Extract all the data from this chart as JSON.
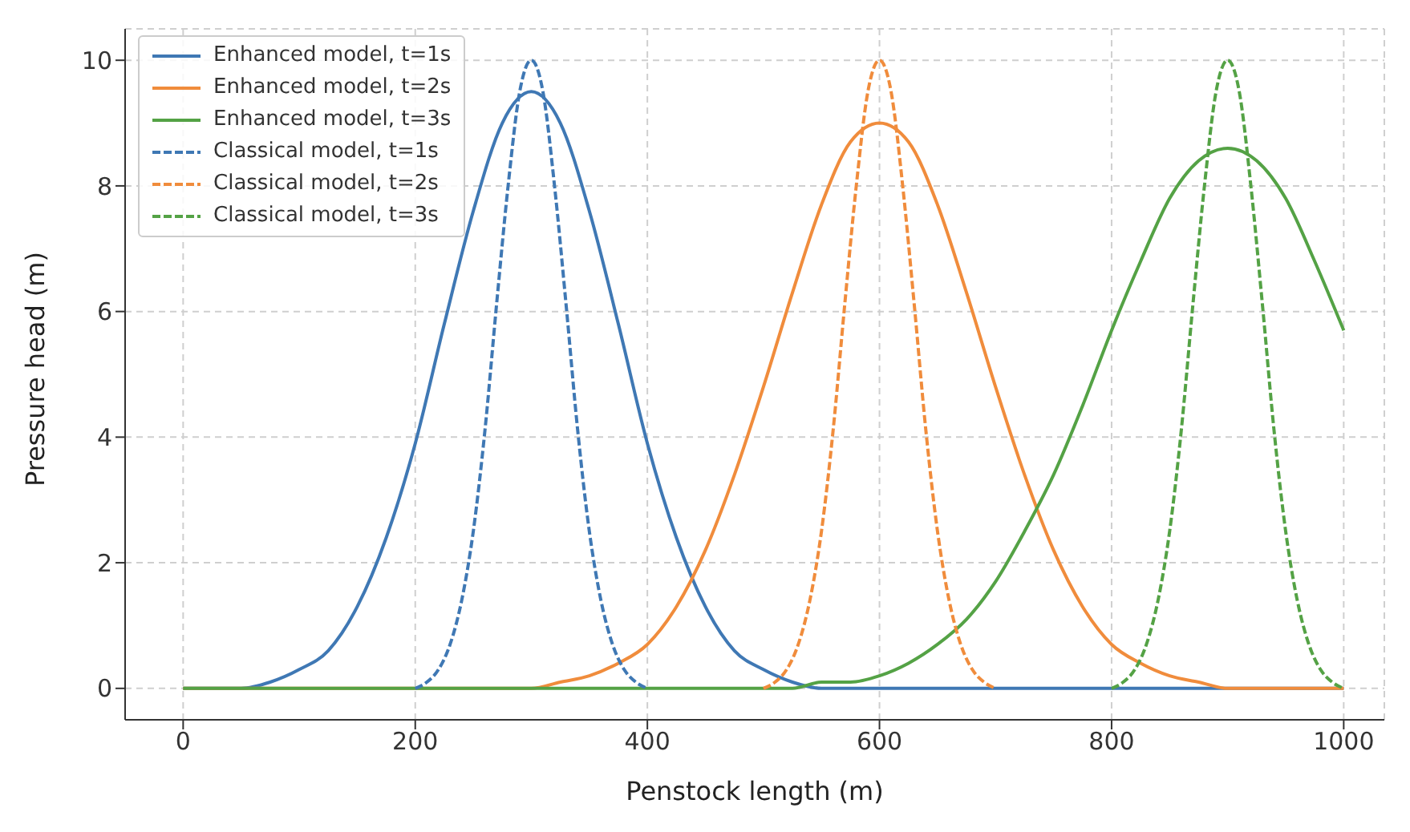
{
  "chart_data": {
    "type": "line",
    "xlabel": "Penstock length (m)",
    "ylabel": "Pressure head (m)",
    "xlim": [
      -50,
      1035
    ],
    "ylim": [
      -0.5,
      10.5
    ],
    "xticks": [
      0,
      200,
      400,
      600,
      800,
      1000
    ],
    "yticks": [
      0,
      2,
      4,
      6,
      8,
      10
    ],
    "grid": true,
    "legend": "top left",
    "marker": "none",
    "series": [
      {
        "name": "Enhanced model, t=1s",
        "color": "#3f78b4",
        "line_style": "solid",
        "x": [
          0,
          50,
          75,
          100,
          125,
          150,
          175,
          200,
          225,
          250,
          275,
          300,
          325,
          350,
          375,
          400,
          425,
          450,
          475,
          500,
          525,
          550,
          1000
        ],
        "values": [
          0,
          0,
          0.1,
          0.3,
          0.6,
          1.3,
          2.4,
          3.9,
          5.8,
          7.6,
          9.0,
          9.5,
          9.0,
          7.6,
          5.8,
          3.9,
          2.4,
          1.3,
          0.6,
          0.3,
          0.1,
          0,
          0
        ]
      },
      {
        "name": "Enhanced model, t=2s",
        "color": "#f08c3c",
        "line_style": "solid",
        "x": [
          0,
          300,
          325,
          350,
          375,
          400,
          425,
          450,
          475,
          500,
          525,
          550,
          575,
          600,
          625,
          650,
          675,
          700,
          725,
          750,
          775,
          800,
          825,
          850,
          875,
          900,
          1000
        ],
        "values": [
          0,
          0,
          0.1,
          0.2,
          0.4,
          0.7,
          1.3,
          2.2,
          3.4,
          4.8,
          6.3,
          7.7,
          8.7,
          9.0,
          8.7,
          7.7,
          6.3,
          4.8,
          3.4,
          2.2,
          1.3,
          0.7,
          0.4,
          0.2,
          0.1,
          0,
          0
        ]
      },
      {
        "name": "Enhanced model, t=3s",
        "color": "#54a245",
        "line_style": "solid",
        "x": [
          0,
          525,
          550,
          575,
          600,
          625,
          650,
          675,
          700,
          725,
          750,
          775,
          800,
          825,
          850,
          875,
          900,
          925,
          950,
          975,
          1000
        ],
        "values": [
          0,
          0,
          0.1,
          0.1,
          0.2,
          0.4,
          0.7,
          1.1,
          1.7,
          2.5,
          3.4,
          4.5,
          5.7,
          6.8,
          7.8,
          8.4,
          8.6,
          8.4,
          7.8,
          6.8,
          5.7
        ]
      },
      {
        "name": "Classical model, t=1s",
        "color": "#3f78b4",
        "line_style": "dashed",
        "x": [
          200,
          210,
          220,
          230,
          240,
          250,
          260,
          270,
          280,
          290,
          300,
          310,
          320,
          330,
          340,
          350,
          360,
          370,
          380,
          390,
          400
        ],
        "values": [
          0,
          0.1,
          0.3,
          0.7,
          1.4,
          2.5,
          4.1,
          6.1,
          8.0,
          9.5,
          10,
          9.5,
          8.0,
          6.1,
          4.1,
          2.5,
          1.4,
          0.7,
          0.3,
          0.1,
          0
        ]
      },
      {
        "name": "Classical model, t=2s",
        "color": "#f08c3c",
        "line_style": "dashed",
        "x": [
          500,
          510,
          520,
          530,
          540,
          550,
          560,
          570,
          580,
          590,
          600,
          610,
          620,
          630,
          640,
          650,
          660,
          670,
          680,
          690,
          700
        ],
        "values": [
          0,
          0.1,
          0.3,
          0.7,
          1.4,
          2.5,
          4.1,
          6.1,
          8.0,
          9.5,
          10,
          9.5,
          8.0,
          6.1,
          4.1,
          2.5,
          1.4,
          0.7,
          0.3,
          0.1,
          0
        ]
      },
      {
        "name": "Classical model, t=3s",
        "color": "#54a245",
        "line_style": "dashed",
        "x": [
          800,
          810,
          820,
          830,
          840,
          850,
          860,
          870,
          880,
          890,
          900,
          910,
          920,
          930,
          940,
          950,
          960,
          970,
          980,
          990,
          1000
        ],
        "values": [
          0,
          0.1,
          0.3,
          0.7,
          1.4,
          2.5,
          4.1,
          6.1,
          8.0,
          9.5,
          10,
          9.5,
          8.0,
          6.1,
          4.1,
          2.5,
          1.4,
          0.7,
          0.3,
          0.1,
          0
        ]
      }
    ]
  }
}
